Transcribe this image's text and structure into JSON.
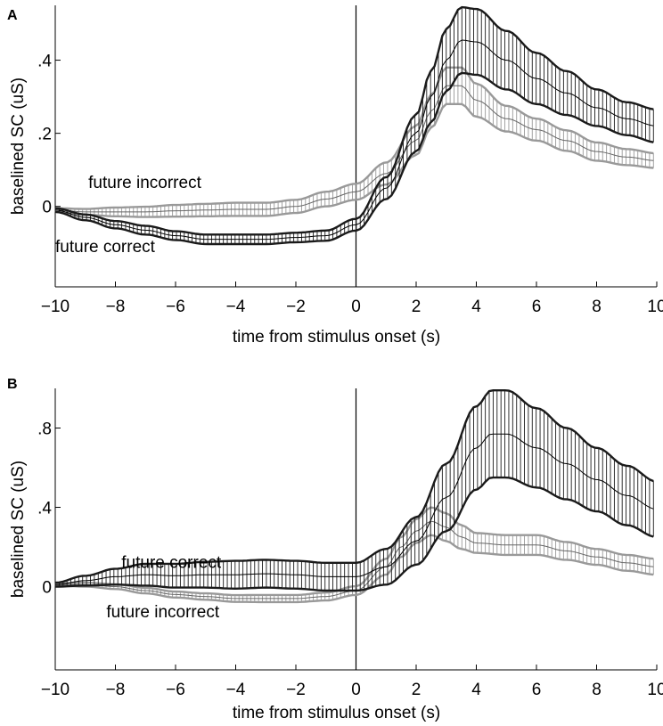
{
  "chart_data": [
    {
      "panel": "A",
      "type": "line",
      "xlabel": "time from stimulus onset (s)",
      "ylabel": "baselined SC (uS)",
      "xlim": [
        -10,
        10
      ],
      "ylim": [
        -0.22,
        0.55
      ],
      "xticks": [
        -10,
        -8,
        -6,
        -4,
        -2,
        0,
        2,
        4,
        6,
        8,
        10
      ],
      "xtick_labels": [
        "−10",
        "−8",
        "−6",
        "−4",
        "−2",
        "0",
        "2",
        "4",
        "6",
        "8",
        "10"
      ],
      "yticks": [
        0,
        0.2,
        0.4
      ],
      "ytick_labels": [
        "0",
        ".2",
        ".4"
      ],
      "grid": false,
      "series": [
        {
          "name": "future correct",
          "color": "#1a1a1a",
          "x": [
            -10,
            -9,
            -8,
            -7,
            -6,
            -5,
            -4,
            -3,
            -2,
            -1,
            0,
            1,
            2,
            2.5,
            3,
            3.5,
            4,
            5,
            6,
            7,
            8,
            9,
            10
          ],
          "y": [
            -0.01,
            -0.03,
            -0.05,
            -0.065,
            -0.08,
            -0.09,
            -0.09,
            -0.09,
            -0.085,
            -0.08,
            -0.05,
            0.05,
            0.2,
            0.3,
            0.4,
            0.455,
            0.45,
            0.4,
            0.35,
            0.31,
            0.27,
            0.24,
            0.22
          ],
          "err": [
            0.005,
            0.008,
            0.01,
            0.012,
            0.012,
            0.013,
            0.013,
            0.013,
            0.013,
            0.014,
            0.016,
            0.03,
            0.05,
            0.07,
            0.085,
            0.09,
            0.09,
            0.08,
            0.07,
            0.06,
            0.05,
            0.045,
            0.045
          ]
        },
        {
          "name": "future incorrect",
          "color": "#999999",
          "x": [
            -10,
            -9,
            -8,
            -7,
            -6,
            -5,
            -4,
            -3,
            -2,
            -1,
            0,
            1,
            2,
            2.5,
            3,
            3.5,
            4,
            5,
            6,
            7,
            8,
            9,
            10
          ],
          "y": [
            -0.01,
            -0.015,
            -0.015,
            -0.015,
            -0.012,
            -0.01,
            -0.008,
            -0.008,
            0,
            0.02,
            0.04,
            0.09,
            0.18,
            0.26,
            0.33,
            0.33,
            0.29,
            0.24,
            0.21,
            0.18,
            0.15,
            0.135,
            0.125
          ],
          "err": [
            0.005,
            0.008,
            0.012,
            0.014,
            0.016,
            0.017,
            0.018,
            0.018,
            0.018,
            0.02,
            0.022,
            0.03,
            0.04,
            0.045,
            0.05,
            0.05,
            0.045,
            0.035,
            0.03,
            0.028,
            0.025,
            0.022,
            0.02
          ]
        }
      ],
      "annotations": [
        {
          "text": "future incorrect",
          "x": -8.9,
          "y": 0.05
        },
        {
          "text": "future correct",
          "x": -10,
          "y": -0.125
        }
      ]
    },
    {
      "panel": "B",
      "type": "line",
      "xlabel": "time from stimulus onset (s)",
      "ylabel": "baselined SC (uS)",
      "xlim": [
        -10,
        10
      ],
      "ylim": [
        -0.42,
        1.0
      ],
      "xticks": [
        -10,
        -8,
        -6,
        -4,
        -2,
        0,
        2,
        4,
        6,
        8,
        10
      ],
      "xtick_labels": [
        "−10",
        "−8",
        "−6",
        "−4",
        "−2",
        "0",
        "2",
        "4",
        "6",
        "8",
        "10"
      ],
      "yticks": [
        0,
        0.4,
        0.8
      ],
      "ytick_labels": [
        "0",
        ".4",
        ".8"
      ],
      "grid": false,
      "series": [
        {
          "name": "future correct",
          "color": "#1a1a1a",
          "x": [
            -10,
            -9,
            -8,
            -7,
            -6,
            -5,
            -4,
            -3,
            -2,
            -1,
            0,
            1,
            2,
            3,
            4,
            4.5,
            5,
            6,
            7,
            8,
            9,
            10
          ],
          "y": [
            0.01,
            0.03,
            0.05,
            0.06,
            0.055,
            0.06,
            0.06,
            0.065,
            0.06,
            0.05,
            0.05,
            0.1,
            0.23,
            0.45,
            0.7,
            0.77,
            0.77,
            0.7,
            0.62,
            0.54,
            0.46,
            0.39
          ],
          "err": [
            0.01,
            0.025,
            0.04,
            0.055,
            0.06,
            0.065,
            0.07,
            0.07,
            0.07,
            0.07,
            0.07,
            0.09,
            0.12,
            0.17,
            0.21,
            0.22,
            0.22,
            0.2,
            0.18,
            0.16,
            0.15,
            0.14
          ]
        },
        {
          "name": "future incorrect",
          "color": "#999999",
          "x": [
            -10,
            -9,
            -8,
            -7,
            -6,
            -5,
            -4,
            -3,
            -2,
            -1,
            0,
            1,
            1.5,
            2,
            2.5,
            3,
            3.5,
            4,
            5,
            6,
            7,
            8,
            9,
            10
          ],
          "y": [
            0.01,
            0.01,
            0,
            -0.02,
            -0.04,
            -0.05,
            -0.06,
            -0.06,
            -0.06,
            -0.05,
            -0.02,
            0.1,
            0.2,
            0.28,
            0.33,
            0.3,
            0.25,
            0.22,
            0.21,
            0.21,
            0.18,
            0.15,
            0.12,
            0.1
          ],
          "err": [
            0.005,
            0.01,
            0.012,
            0.014,
            0.015,
            0.016,
            0.017,
            0.018,
            0.018,
            0.02,
            0.022,
            0.04,
            0.05,
            0.06,
            0.07,
            0.07,
            0.06,
            0.05,
            0.05,
            0.05,
            0.045,
            0.04,
            0.04,
            0.04
          ]
        }
      ],
      "annotations": [
        {
          "text": "future correct",
          "x": -7.8,
          "y": 0.095
        },
        {
          "text": "future incorrect",
          "x": -8.3,
          "y": -0.155
        }
      ]
    }
  ]
}
